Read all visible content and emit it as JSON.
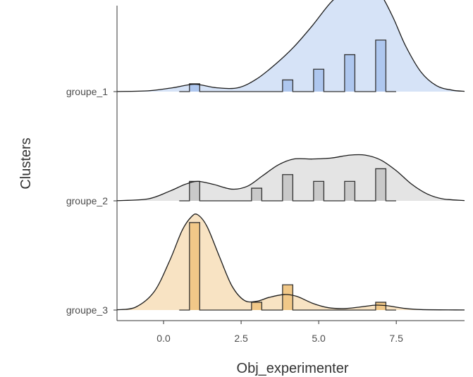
{
  "chart_data": {
    "type": "ridgeline-histogram",
    "xlabel": "Obj_experimenter",
    "ylabel": "Clusters",
    "xlim": [
      -1.5,
      9.7
    ],
    "x_ticks": [
      0,
      2.5,
      5,
      7.5
    ],
    "x_tick_labels": [
      "0.0",
      "2.5",
      "5.0",
      "7.5"
    ],
    "grid": false,
    "bin_width": 0.33,
    "groups": [
      {
        "name": "groupe_1",
        "color": "#aec7ef",
        "density": [
          [
            -1.5,
            0.001
          ],
          [
            -0.5,
            0.008
          ],
          [
            0.3,
            0.04
          ],
          [
            1.0,
            0.075
          ],
          [
            1.7,
            0.04
          ],
          [
            2.4,
            0.04
          ],
          [
            3.0,
            0.13
          ],
          [
            3.6,
            0.28
          ],
          [
            4.2,
            0.46
          ],
          [
            4.8,
            0.68
          ],
          [
            5.4,
            0.92
          ],
          [
            6.0,
            1.08
          ],
          [
            6.3,
            1.13
          ],
          [
            6.6,
            1.12
          ],
          [
            7.0,
            1.0
          ],
          [
            7.4,
            0.76
          ],
          [
            7.8,
            0.47
          ],
          [
            8.3,
            0.2
          ],
          [
            8.8,
            0.06
          ],
          [
            9.3,
            0.015
          ],
          [
            9.7,
            0.003
          ]
        ],
        "bins": [
          [
            1.0,
            0.08
          ],
          [
            4.0,
            0.12
          ],
          [
            5.0,
            0.23
          ],
          [
            6.0,
            0.38
          ],
          [
            7.0,
            0.53
          ]
        ]
      },
      {
        "name": "groupe_2",
        "color": "#c9c9c9",
        "density": [
          [
            -1.5,
            0.002
          ],
          [
            -0.5,
            0.02
          ],
          [
            0.2,
            0.1
          ],
          [
            0.7,
            0.17
          ],
          [
            1.1,
            0.2
          ],
          [
            1.6,
            0.17
          ],
          [
            2.2,
            0.12
          ],
          [
            2.7,
            0.15
          ],
          [
            3.2,
            0.26
          ],
          [
            3.7,
            0.37
          ],
          [
            4.2,
            0.43
          ],
          [
            4.8,
            0.43
          ],
          [
            5.4,
            0.44
          ],
          [
            6.0,
            0.47
          ],
          [
            6.5,
            0.47
          ],
          [
            7.0,
            0.42
          ],
          [
            7.5,
            0.31
          ],
          [
            8.0,
            0.17
          ],
          [
            8.5,
            0.07
          ],
          [
            9.0,
            0.02
          ],
          [
            9.7,
            0.003
          ]
        ],
        "bins": [
          [
            1.0,
            0.2
          ],
          [
            3.0,
            0.13
          ],
          [
            4.0,
            0.27
          ],
          [
            5.0,
            0.2
          ],
          [
            6.0,
            0.2
          ],
          [
            7.0,
            0.33
          ]
        ]
      },
      {
        "name": "groupe_3",
        "color": "#f1c888",
        "density": [
          [
            -1.5,
            0.003
          ],
          [
            -0.9,
            0.03
          ],
          [
            -0.3,
            0.19
          ],
          [
            0.2,
            0.51
          ],
          [
            0.6,
            0.82
          ],
          [
            0.9,
            0.96
          ],
          [
            1.1,
            0.98
          ],
          [
            1.4,
            0.86
          ],
          [
            1.8,
            0.55
          ],
          [
            2.2,
            0.25
          ],
          [
            2.6,
            0.1
          ],
          [
            3.0,
            0.09
          ],
          [
            3.4,
            0.13
          ],
          [
            3.9,
            0.16
          ],
          [
            4.3,
            0.14
          ],
          [
            4.8,
            0.07
          ],
          [
            5.3,
            0.025
          ],
          [
            5.8,
            0.015
          ],
          [
            6.3,
            0.03
          ],
          [
            6.8,
            0.05
          ],
          [
            7.2,
            0.045
          ],
          [
            7.7,
            0.02
          ],
          [
            8.3,
            0.005
          ],
          [
            9.7,
            0.001
          ]
        ],
        "bins": [
          [
            1.0,
            0.9
          ],
          [
            3.0,
            0.08
          ],
          [
            4.0,
            0.26
          ],
          [
            7.0,
            0.08
          ]
        ]
      }
    ]
  }
}
